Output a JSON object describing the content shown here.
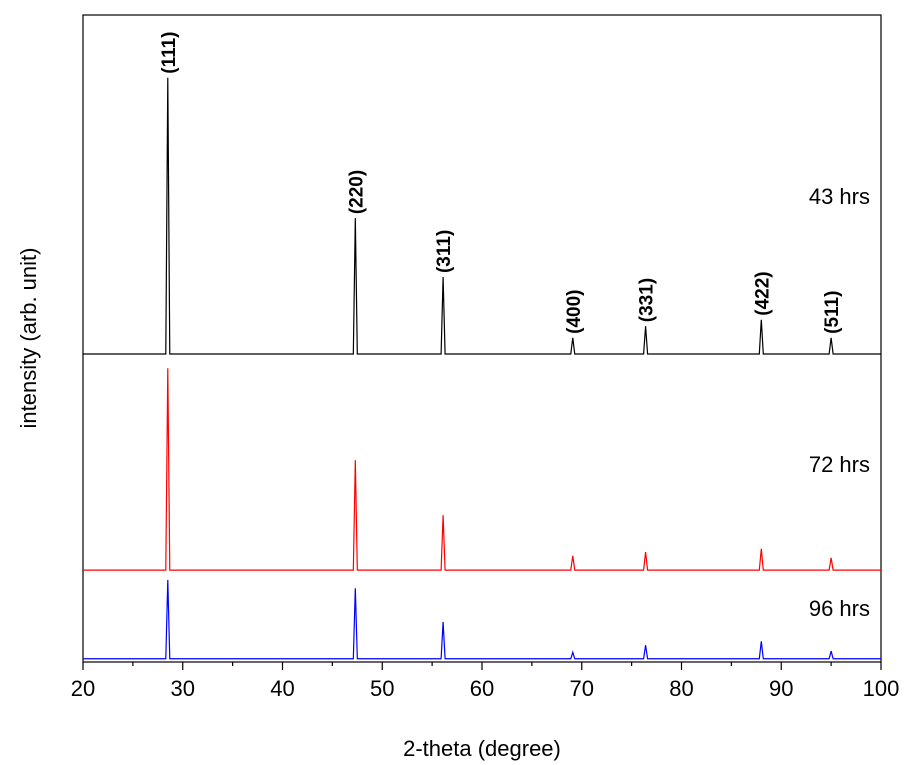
{
  "chart_data": {
    "type": "line",
    "x_label": "2-theta (degree)",
    "y_label": "intensity (arb. unit)",
    "x": [
      20,
      28.3,
      28.5,
      28.7,
      47.1,
      47.3,
      47.5,
      55.9,
      56.1,
      56.3,
      68.9,
      69.1,
      69.3,
      76.2,
      76.4,
      76.6,
      87.8,
      88.0,
      88.2,
      94.8,
      95.0,
      95.2,
      100
    ],
    "series": [
      {
        "name": "43 hrs",
        "color": "#000000",
        "values": [
          47.6,
          47.6,
          90.3,
          47.6,
          47.6,
          68.6,
          47.6,
          47.6,
          59.5,
          47.6,
          47.6,
          50.1,
          47.6,
          47.6,
          51.9,
          47.6,
          47.6,
          52.9,
          47.6,
          47.6,
          50.1,
          47.6,
          47.6
        ]
      },
      {
        "name": "72 hrs",
        "color": "#ff0000",
        "values": [
          14.2,
          14.2,
          45.4,
          14.2,
          14.2,
          31.2,
          14.2,
          14.2,
          22.7,
          14.2,
          14.2,
          16.4,
          14.2,
          14.2,
          17.0,
          14.2,
          14.2,
          17.5,
          14.2,
          14.2,
          16.1,
          14.2,
          14.2
        ]
      },
      {
        "name": "96 hrs",
        "color": "#0000ff",
        "values": [
          0.5,
          0.5,
          12.7,
          0.5,
          0.5,
          11.4,
          0.5,
          0.5,
          6.2,
          0.5,
          0.5,
          1.5,
          0.5,
          0.5,
          2.6,
          0.5,
          0.5,
          3.2,
          0.5,
          0.5,
          1.7,
          0.5,
          0.5
        ]
      }
    ],
    "annotations": [
      {
        "text": "(111)",
        "x": 28.5
      },
      {
        "text": "(220)",
        "x": 47.3
      },
      {
        "text": "(311)",
        "x": 56.1
      },
      {
        "text": "(400)",
        "x": 69.1
      },
      {
        "text": "(331)",
        "x": 76.4
      },
      {
        "text": "(422)",
        "x": 88.0
      },
      {
        "text": "(511)",
        "x": 95.0
      }
    ],
    "xlim": [
      20,
      100
    ],
    "xticks": [
      20,
      30,
      40,
      50,
      60,
      70,
      80,
      90,
      100
    ],
    "xminorticks": [
      25,
      35,
      45,
      55,
      65,
      75,
      85,
      95
    ],
    "ylim": [
      0,
      100
    ]
  }
}
